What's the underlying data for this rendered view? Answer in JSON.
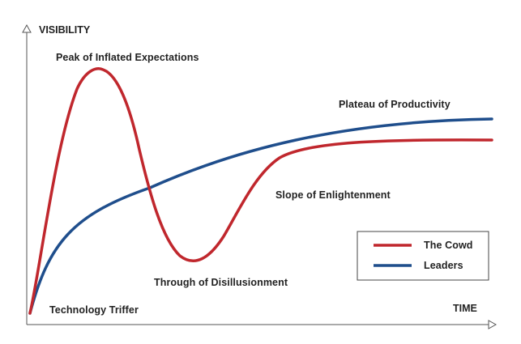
{
  "axes": {
    "y_label": "VISIBILITY",
    "x_label": "TIME"
  },
  "phases": {
    "trigger": "Technology Triffer",
    "peak": "Peak of Inflated Expectations",
    "trough": "Through of Disillusionment",
    "slope": "Slope of Enlightenment",
    "plateau": "Plateau of Productivity"
  },
  "legend": {
    "crowd": "The Cowd",
    "leaders": "Leaders"
  },
  "colors": {
    "crowd": "#c0272d",
    "leaders": "#1f4e8c",
    "axis": "#555555",
    "legend_border": "#444444"
  }
}
